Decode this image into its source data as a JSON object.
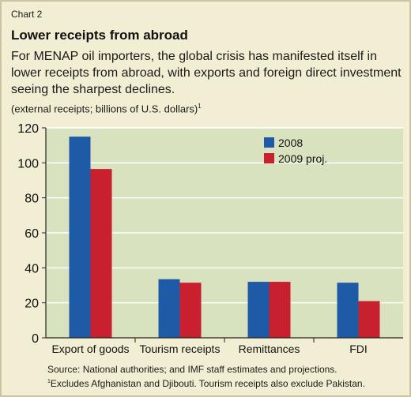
{
  "header": {
    "chart_label": "Chart 2",
    "title": "Lower receipts from abroad",
    "subtitle": "For MENAP oil importers, the global crisis has manifested itself in lower receipts from abroad, with exports and foreign direct investment seeing the sharpest declines.",
    "units": "(external receipts; billions of U.S. dollars)",
    "units_footnote_mark": "1"
  },
  "footer": {
    "source": "Source: National authorities; and IMF staff estimates and projections.",
    "footnote_mark": "1",
    "footnote": "Excludes Afghanistan and Djibouti. Tourism receipts also exclude Pakistan."
  },
  "colors": {
    "series_2008": "#1f5aa6",
    "series_2009": "#c8202f",
    "plot_background": "#d9e2be",
    "gridline": "#ffffff"
  },
  "chart_data": {
    "type": "bar",
    "categories": [
      "Export of goods",
      "Tourism receipts",
      "Remittances",
      "FDI"
    ],
    "series": [
      {
        "name": "2008",
        "values": [
          115,
          33.5,
          32,
          31.5
        ]
      },
      {
        "name": "2009 proj.",
        "values": [
          96.5,
          31.5,
          32,
          21
        ]
      }
    ],
    "ylim": [
      0,
      120
    ],
    "yticks": [
      0,
      20,
      40,
      60,
      80,
      100,
      120
    ],
    "grid": true,
    "legend_position": "top-right"
  }
}
